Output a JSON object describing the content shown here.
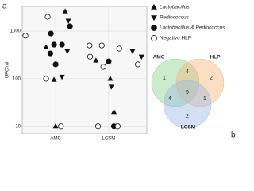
{
  "chart_data": [
    {
      "type": "scatter",
      "panel": "a",
      "ylabel": "UFC/ml",
      "log_y": true,
      "grid": true,
      "xlim": [
        0.37,
        2.72
      ],
      "xticks": [
        {
          "value": 1,
          "label": "AMC"
        },
        {
          "value": 2,
          "label": "LCSM"
        }
      ],
      "ylim": [
        7,
        3300
      ],
      "yticks": [
        10,
        100,
        1000
      ],
      "series": [
        {
          "name": "Lactobacillus",
          "marker": "triangle-up",
          "color": "#111111",
          "x": [
            1.18,
            0.82,
            0.97,
            1.0,
            1.76,
            2.03,
            2.1
          ],
          "values": [
            2600,
            460,
            95,
            10,
            240,
            100,
            20
          ]
        },
        {
          "name": "Pediococcus",
          "marker": "triangle-down",
          "color": "#111111",
          "x": [
            1.24,
            1.22,
            1.12,
            2.62,
            2.45,
            2.05
          ],
          "values": [
            1650,
            380,
            110,
            290,
            380,
            68
          ]
        },
        {
          "name": "Lactobacillus & Pediococcus",
          "marker": "circle",
          "color": "#111111",
          "x": [
            1.27,
            0.91,
            0.97,
            1.12,
            0.9,
            1.0,
            2.0,
            2.1
          ],
          "values": [
            1260,
            890,
            520,
            520,
            340,
            200,
            230,
            10
          ]
        },
        {
          "name": "Negativo HLP",
          "marker": "circle-open",
          "color": "#111111",
          "x": [
            0.85,
            0.43,
            0.82,
            1.1,
            1.64,
            1.87,
            1.65,
            2.2,
            2.55,
            1.8,
            2.17,
            1.9
          ],
          "values": [
            2000,
            800,
            100,
            10,
            500,
            500,
            290,
            430,
            200,
            10,
            10,
            178
          ]
        }
      ]
    },
    {
      "type": "venn",
      "panel": "b",
      "sets": [
        {
          "name": "AMC",
          "color": "#8fd18f"
        },
        {
          "name": "HLP",
          "color": "#f3b77a"
        },
        {
          "name": "LCSM",
          "color": "#9dbbe6"
        }
      ],
      "values": [
        1,
        4,
        2,
        4,
        9,
        1,
        2
      ]
    }
  ]
}
